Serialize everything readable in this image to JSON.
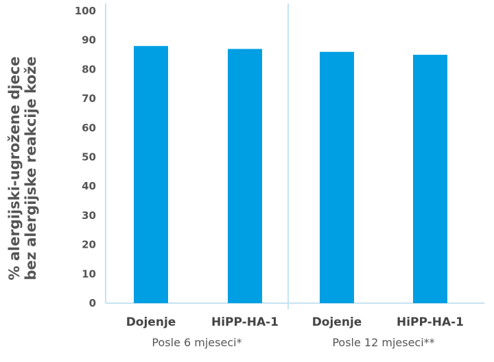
{
  "chart_data": {
    "type": "bar",
    "categories": [
      "Dojenje",
      "HiPP-HA-1",
      "Dojenje",
      "HiPP-HA-1"
    ],
    "groups": [
      {
        "label": "Posle 6 mjeseci*",
        "categories": [
          "Dojenje",
          "HiPP-HA-1"
        ]
      },
      {
        "label": "Posle 12 mjeseci**",
        "categories": [
          "Dojenje",
          "HiPP-HA-1"
        ]
      }
    ],
    "values": [
      88,
      87,
      86,
      85
    ],
    "ylabel_line1": "% alergijski-ugrožene djece",
    "ylabel_line2": "bez alergijske reakcije kože",
    "ylim": [
      0,
      100
    ],
    "yticks": [
      0,
      10,
      20,
      30,
      40,
      50,
      60,
      70,
      80,
      90,
      100
    ],
    "grid": false,
    "colors": {
      "bar": "#009fe3",
      "axis": "#c5e3f3",
      "text": "#555555"
    }
  }
}
